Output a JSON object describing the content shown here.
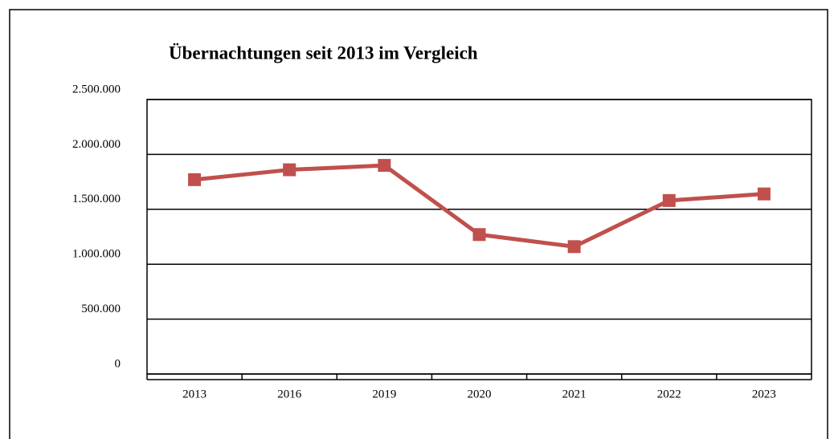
{
  "chart_data": {
    "type": "line",
    "title": "Übernachtungen seit 2013 im Vergleich",
    "categories": [
      "2013",
      "2016",
      "2019",
      "2020",
      "2021",
      "2022",
      "2023"
    ],
    "series": [
      {
        "name": "Übernachtungen",
        "color": "#c0504d",
        "values": [
          1770000,
          1860000,
          1900000,
          1270000,
          1160000,
          1580000,
          1640000
        ]
      }
    ],
    "ylim": [
      0,
      2500000
    ],
    "yticks": [
      0,
      {
        "value": 500000,
        "label": "500.000"
      },
      {
        "value": 1000000,
        "label": "1.000.000"
      },
      {
        "value": 1500000,
        "label": "1.500.000"
      },
      {
        "value": 2000000,
        "label": "2.000.000"
      },
      {
        "value": 2500000,
        "label": "2.500.000"
      }
    ],
    "grid": true
  }
}
